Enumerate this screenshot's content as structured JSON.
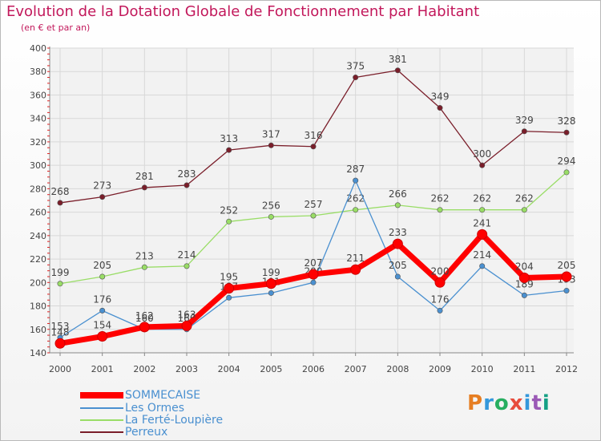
{
  "header": {
    "title": "Evolution de la Dotation Globale de Fonctionnement par Habitant",
    "subtitle": "(en € et par an)"
  },
  "logo": {
    "letters": [
      "P",
      "r",
      "o",
      "x",
      "i",
      "t",
      "i"
    ],
    "colors": [
      "#e67e22",
      "#3498db",
      "#27ae60",
      "#e74c3c",
      "#3498db",
      "#9b59b6",
      "#16a085"
    ]
  },
  "chart_data": {
    "type": "line",
    "title": "Evolution de la Dotation Globale de Fonctionnement par Habitant",
    "subtitle": "(en € et par an)",
    "xlabel": "",
    "ylabel": "",
    "categories": [
      "2000",
      "2001",
      "2002",
      "2003",
      "2004",
      "2005",
      "2006",
      "2007",
      "2008",
      "2009",
      "2010",
      "2011",
      "2012"
    ],
    "ylim": [
      140,
      400
    ],
    "yticks": [
      140,
      160,
      180,
      200,
      220,
      240,
      260,
      280,
      300,
      320,
      340,
      360,
      380,
      400
    ],
    "grid": true,
    "legend_position": "bottom-left",
    "series": [
      {
        "name": "SOMMECAISE",
        "color": "#ff0000",
        "values": [
          148,
          154,
          162,
          163,
          195,
          199,
          207,
          211,
          233,
          200,
          241,
          204,
          205
        ]
      },
      {
        "name": "Les Ormes",
        "color": "#4a90d0",
        "values": [
          153,
          176,
          160,
          160,
          187,
          191,
          200,
          287,
          205,
          176,
          214,
          189,
          193
        ]
      },
      {
        "name": "La Ferté-Loupière",
        "color": "#99dd66",
        "values": [
          199,
          205,
          213,
          214,
          252,
          256,
          257,
          262,
          266,
          262,
          262,
          262,
          294
        ]
      },
      {
        "name": "Perreux",
        "color": "#7a1e2a",
        "values": [
          268,
          273,
          281,
          283,
          313,
          317,
          316,
          375,
          381,
          349,
          300,
          329,
          328
        ]
      }
    ]
  }
}
